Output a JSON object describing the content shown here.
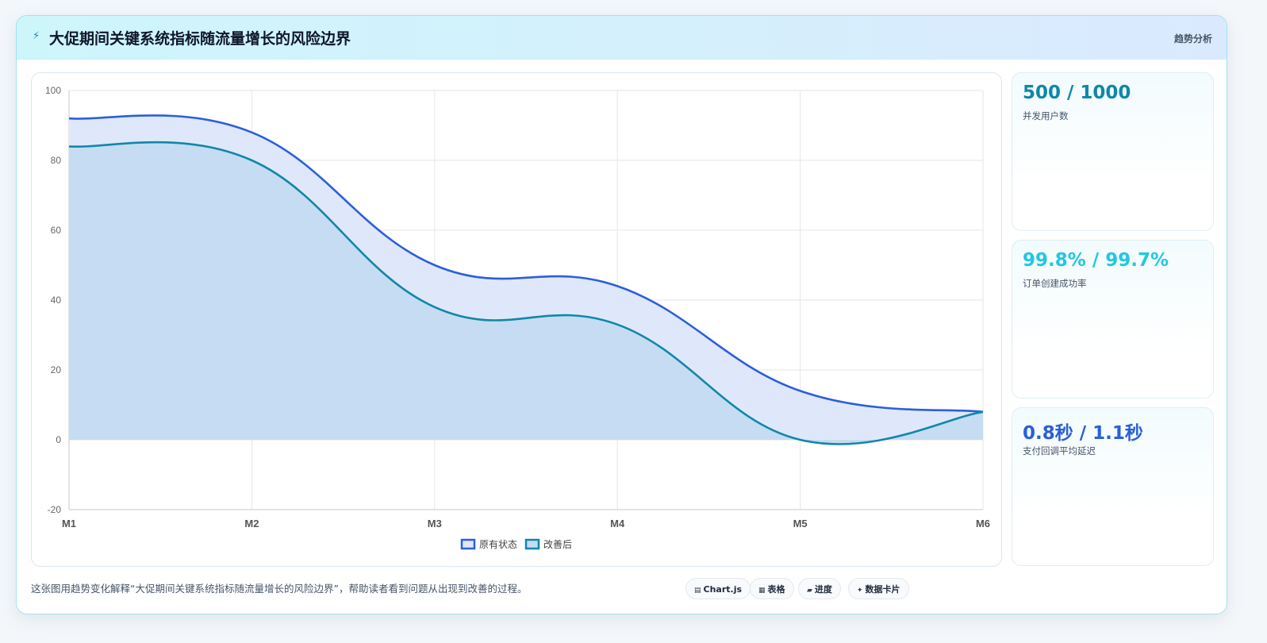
{
  "header": {
    "icon": "bolt-icon",
    "title": "大促期间关键系统指标随流量增长的风险边界",
    "tag": "趋势分析"
  },
  "chart_data": {
    "type": "area",
    "categories": [
      "M1",
      "M2",
      "M3",
      "M4",
      "M5",
      "M6"
    ],
    "series": [
      {
        "name": "原有状态",
        "values": [
          92,
          88,
          50,
          44,
          14,
          8
        ],
        "color": "#2d5fdb",
        "fill": "#dfe8fb"
      },
      {
        "name": "改善后",
        "values": [
          84,
          80,
          38,
          33,
          0,
          8
        ],
        "color": "#1287a8",
        "fill": "#c5dcf2"
      }
    ],
    "ylim": [
      -20,
      100
    ],
    "yticks": [
      -20,
      0,
      20,
      40,
      60,
      80,
      100
    ],
    "grid": true,
    "legend": "bottom"
  },
  "stats": [
    {
      "value": "500 / 1000",
      "label": "并发用户数",
      "color": "#0e88a8"
    },
    {
      "value": "99.8% / 99.7%",
      "label": "订单创建成功率",
      "color": "#22c7e0"
    },
    {
      "value": "0.8秒 / 1.1秒",
      "label": "支付回调平均延迟",
      "color": "#2a5fd6"
    }
  ],
  "footer": {
    "description": "这张图用趋势变化解释“大促期间关键系统指标随流量增长的风险边界”，帮助读者看到问题从出现到改善的过程。",
    "chips": [
      {
        "icon": "▤",
        "label": "Chart.js"
      },
      {
        "icon": "▦",
        "label": "表格"
      },
      {
        "icon": "▰",
        "label": "进度"
      },
      {
        "icon": "✦",
        "label": "数据卡片"
      }
    ]
  }
}
